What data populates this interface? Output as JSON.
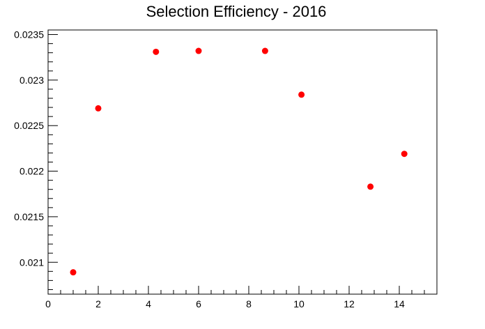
{
  "chart_data": {
    "type": "scatter",
    "title": "Selection Efficiency - 2016",
    "xlabel": "",
    "ylabel": "",
    "xlim": [
      0,
      15.5
    ],
    "ylim": [
      0.02065,
      0.02355
    ],
    "x_ticks": [
      0,
      2,
      4,
      6,
      8,
      10,
      12,
      14
    ],
    "x_tick_labels": [
      "0",
      "2",
      "4",
      "6",
      "8",
      "10",
      "12",
      "14"
    ],
    "y_ticks": [
      0.021,
      0.0215,
      0.022,
      0.0225,
      0.023,
      0.0235
    ],
    "y_tick_labels": [
      "0.021",
      "0.0215",
      "0.022",
      "0.0225",
      "0.023",
      "0.0235"
    ],
    "grid": false,
    "marker_color": "#ff0000",
    "points": [
      {
        "x": 1.0,
        "y": 0.02089
      },
      {
        "x": 2.0,
        "y": 0.02269
      },
      {
        "x": 4.3,
        "y": 0.02331
      },
      {
        "x": 6.0,
        "y": 0.02332
      },
      {
        "x": 8.65,
        "y": 0.02332
      },
      {
        "x": 10.1,
        "y": 0.02284
      },
      {
        "x": 12.85,
        "y": 0.02183
      },
      {
        "x": 14.2,
        "y": 0.02219
      }
    ]
  }
}
